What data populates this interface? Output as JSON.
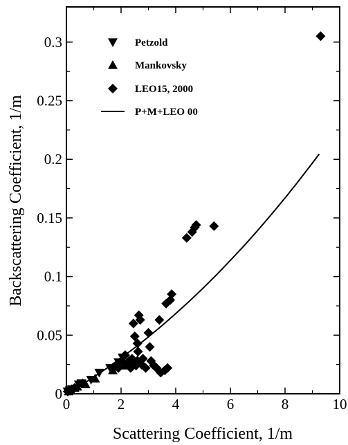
{
  "chart_data": {
    "type": "scatter",
    "title": "",
    "xlabel": "Scattering Coefficient, 1/m",
    "ylabel": "Backscattering Coefficient, 1/m",
    "xlim": [
      0,
      10
    ],
    "ylim": [
      0,
      0.33
    ],
    "xticks": [
      0,
      2,
      4,
      6,
      8,
      10
    ],
    "xtick_labels": [
      "0",
      "2",
      "4",
      "6",
      "8",
      "10"
    ],
    "yticks": [
      0,
      0.05,
      0.1,
      0.15,
      0.2,
      0.25,
      0.3
    ],
    "ytick_labels": [
      "0",
      "0.05",
      "0.1",
      "0.15",
      "0.2",
      "0.25",
      "0.3"
    ],
    "grid": false,
    "legend_position": "top-left",
    "series": [
      {
        "name": "Petzold",
        "marker": "triangle-down",
        "color": "#000000",
        "points": [
          [
            0.04,
            0.002
          ],
          [
            0.12,
            0.003
          ],
          [
            0.2,
            0.004
          ],
          [
            0.45,
            0.008
          ],
          [
            0.55,
            0.009
          ],
          [
            0.9,
            0.012
          ],
          [
            1.2,
            0.018
          ],
          [
            1.6,
            0.022
          ],
          [
            1.9,
            0.027
          ],
          [
            2.05,
            0.031
          ]
        ]
      },
      {
        "name": "Mankovsky",
        "marker": "triangle-up",
        "color": "#000000",
        "points": [
          [
            0.08,
            0.002
          ],
          [
            0.15,
            0.003
          ],
          [
            0.3,
            0.005
          ],
          [
            0.4,
            0.006
          ],
          [
            0.6,
            0.009
          ],
          [
            0.7,
            0.008
          ],
          [
            1.05,
            0.013
          ],
          [
            1.7,
            0.02
          ],
          [
            2.1,
            0.024
          ],
          [
            2.4,
            0.027
          ],
          [
            2.6,
            0.029
          ]
        ]
      },
      {
        "name": "LEO15, 2000",
        "marker": "diamond",
        "color": "#000000",
        "points": [
          [
            0.05,
            0.002
          ],
          [
            0.1,
            0.003
          ],
          [
            0.2,
            0.004
          ],
          [
            0.3,
            0.005
          ],
          [
            1.8,
            0.024
          ],
          [
            1.9,
            0.022
          ],
          [
            2.0,
            0.028
          ],
          [
            2.1,
            0.026
          ],
          [
            2.15,
            0.033
          ],
          [
            2.2,
            0.025
          ],
          [
            2.3,
            0.028
          ],
          [
            2.35,
            0.022
          ],
          [
            2.4,
            0.03
          ],
          [
            2.45,
            0.06
          ],
          [
            2.5,
            0.049
          ],
          [
            2.55,
            0.024
          ],
          [
            2.6,
            0.043
          ],
          [
            2.62,
            0.036
          ],
          [
            2.7,
            0.063
          ],
          [
            2.65,
            0.067
          ],
          [
            2.75,
            0.025
          ],
          [
            2.8,
            0.03
          ],
          [
            2.9,
            0.022
          ],
          [
            3.0,
            0.052
          ],
          [
            3.05,
            0.04
          ],
          [
            3.1,
            0.028
          ],
          [
            3.2,
            0.024
          ],
          [
            3.3,
            0.022
          ],
          [
            3.4,
            0.063
          ],
          [
            3.45,
            0.018
          ],
          [
            3.6,
            0.02
          ],
          [
            3.65,
            0.077
          ],
          [
            3.7,
            0.022
          ],
          [
            3.8,
            0.08
          ],
          [
            3.85,
            0.085
          ],
          [
            4.4,
            0.133
          ],
          [
            4.6,
            0.138
          ],
          [
            4.7,
            0.142
          ],
          [
            4.75,
            0.144
          ],
          [
            5.4,
            0.143
          ],
          [
            9.3,
            0.305
          ]
        ]
      },
      {
        "name": "P+M+LEO 00",
        "type": "line",
        "color": "#000000",
        "points": [
          [
            0,
            0
          ],
          [
            0.5,
            0.0068
          ],
          [
            1,
            0.0143
          ],
          [
            1.5,
            0.0222
          ],
          [
            2,
            0.0305
          ],
          [
            2.5,
            0.0393
          ],
          [
            3,
            0.0485
          ],
          [
            3.5,
            0.0582
          ],
          [
            4,
            0.0684
          ],
          [
            4.5,
            0.079
          ],
          [
            5,
            0.0901
          ],
          [
            5.5,
            0.1017
          ],
          [
            6,
            0.1138
          ],
          [
            6.5,
            0.1263
          ],
          [
            7,
            0.1394
          ],
          [
            7.5,
            0.153
          ],
          [
            8,
            0.167
          ],
          [
            8.5,
            0.1817
          ],
          [
            9,
            0.1968
          ],
          [
            9.25,
            0.2045
          ]
        ]
      }
    ]
  }
}
